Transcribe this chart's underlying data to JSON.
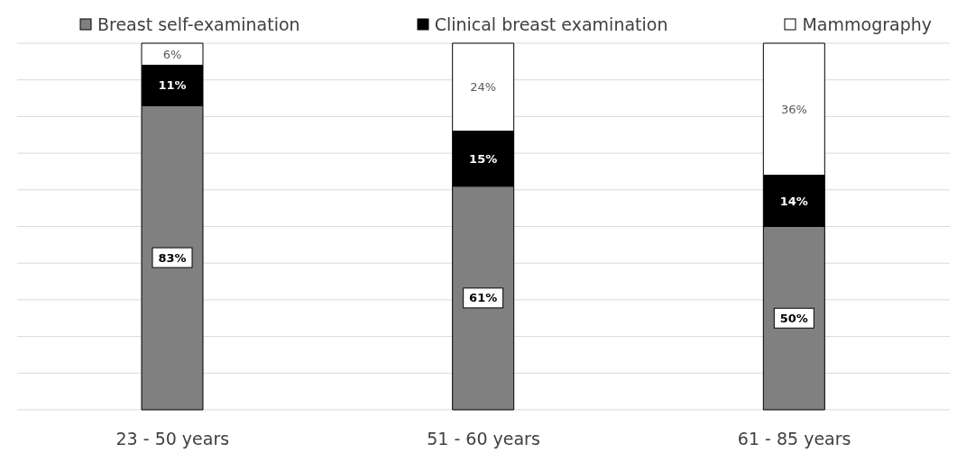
{
  "chart_data": {
    "type": "bar",
    "stacked": true,
    "categories": [
      "23 - 50 years",
      "51 - 60 years",
      "61 - 85 years"
    ],
    "series": [
      {
        "name": "Breast self-examination",
        "color": "#808080",
        "values": [
          83,
          61,
          50
        ],
        "value_labels": [
          "83%",
          "61%",
          "50%"
        ]
      },
      {
        "name": "Clinical breast examination",
        "color": "#000000",
        "values": [
          11,
          15,
          14
        ],
        "value_labels": [
          "11%",
          "15%",
          "14%"
        ]
      },
      {
        "name": "Mammography",
        "color": "#ffffff",
        "values": [
          6,
          24,
          36
        ],
        "value_labels": [
          "6%",
          "24%",
          "36%"
        ]
      }
    ],
    "tick_labels": "x",
    "grid": "y",
    "legend": "top"
  }
}
